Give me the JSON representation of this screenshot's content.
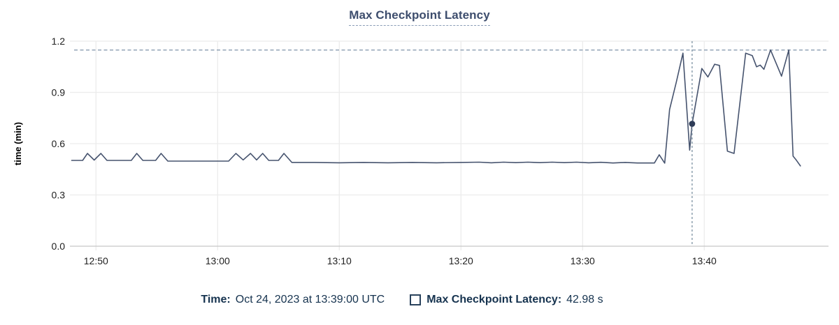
{
  "header": {
    "title": "Max Checkpoint Latency"
  },
  "tooltip": {
    "time_label": "Time:",
    "time_value": "Oct 24, 2023 at 13:39:00 UTC",
    "series_label": "Max Checkpoint Latency:",
    "series_value": "42.98 s",
    "series_checkbox_icon": "unchecked-square"
  },
  "colors": {
    "series_line": "#46536e",
    "cursor_point": "#2e3c57",
    "max_reference_line": "#7f94aa",
    "cursor_line": "#8ea1af",
    "title_text": "#3d4d6d",
    "legend_text": "#16334f",
    "tick_text": "#212121",
    "grid_horizontal": "#ececec",
    "grid_vertical": "#ededed",
    "axis_bottom": "#c6c6c6"
  },
  "chart_data": {
    "type": "line",
    "title": "Max Checkpoint Latency",
    "xlabel": "",
    "ylabel": "time (min)",
    "ylim": [
      0,
      1.2
    ],
    "grid": true,
    "legend_position": "bottom",
    "time_axis_start": "12:48",
    "time_axis_end": "13:48",
    "x_ticks": [
      {
        "t": 2,
        "label": "12:50"
      },
      {
        "t": 12,
        "label": "13:00"
      },
      {
        "t": 22,
        "label": "13:10"
      },
      {
        "t": 32,
        "label": "13:20"
      },
      {
        "t": 42,
        "label": "13:30"
      },
      {
        "t": 52,
        "label": "13:40"
      }
    ],
    "y_ticks": [
      {
        "v": 0.0,
        "label": "0.0"
      },
      {
        "v": 0.3,
        "label": "0.3"
      },
      {
        "v": 0.6,
        "label": "0.6"
      },
      {
        "v": 0.9,
        "label": "0.9"
      },
      {
        "v": 1.2,
        "label": "1.2"
      }
    ],
    "max_reference_line": {
      "value": 1.148,
      "style": "dashed"
    },
    "cursor": {
      "t_minutes": 51,
      "time": "13:39:00 UTC",
      "point_value_minutes": 0.7163,
      "point_value_label": "42.98 s"
    },
    "series": [
      {
        "name": "Max Checkpoint Latency",
        "units": "min",
        "t_is": "minutes after 12:48",
        "points": [
          [
            0,
            0.502
          ],
          [
            0.9,
            0.502
          ],
          [
            1.3,
            0.543
          ],
          [
            1.85,
            0.504
          ],
          [
            2.4,
            0.543
          ],
          [
            2.9,
            0.502
          ],
          [
            4.9,
            0.502
          ],
          [
            5.35,
            0.543
          ],
          [
            5.85,
            0.502
          ],
          [
            6.9,
            0.502
          ],
          [
            7.35,
            0.543
          ],
          [
            7.9,
            0.498
          ],
          [
            12.9,
            0.498
          ],
          [
            13.5,
            0.543
          ],
          [
            14.1,
            0.505
          ],
          [
            14.7,
            0.543
          ],
          [
            15.2,
            0.505
          ],
          [
            15.7,
            0.543
          ],
          [
            16.2,
            0.502
          ],
          [
            17.0,
            0.502
          ],
          [
            17.45,
            0.543
          ],
          [
            18.1,
            0.49
          ],
          [
            20,
            0.49
          ],
          [
            22,
            0.488
          ],
          [
            24,
            0.49
          ],
          [
            26,
            0.488
          ],
          [
            28,
            0.49
          ],
          [
            30,
            0.488
          ],
          [
            32,
            0.49
          ],
          [
            33.5,
            0.492
          ],
          [
            34.5,
            0.488
          ],
          [
            35.5,
            0.492
          ],
          [
            36.5,
            0.489
          ],
          [
            37.5,
            0.492
          ],
          [
            38.5,
            0.489
          ],
          [
            39.5,
            0.492
          ],
          [
            40.5,
            0.489
          ],
          [
            41.5,
            0.492
          ],
          [
            42.5,
            0.488
          ],
          [
            43.5,
            0.491
          ],
          [
            44.5,
            0.487
          ],
          [
            45.5,
            0.49
          ],
          [
            46.5,
            0.487
          ],
          [
            47.9,
            0.487
          ],
          [
            48.3,
            0.535
          ],
          [
            48.75,
            0.486
          ],
          [
            49.15,
            0.8
          ],
          [
            49.7,
            0.96
          ],
          [
            50.25,
            1.13
          ],
          [
            50.8,
            0.562
          ],
          [
            51,
            0.7163
          ],
          [
            51.8,
            1.04
          ],
          [
            52.3,
            0.99
          ],
          [
            52.85,
            1.065
          ],
          [
            53.25,
            1.058
          ],
          [
            53.9,
            0.556
          ],
          [
            54.45,
            0.543
          ],
          [
            55.4,
            1.13
          ],
          [
            55.95,
            1.115
          ],
          [
            56.3,
            1.05
          ],
          [
            56.6,
            1.06
          ],
          [
            56.9,
            1.035
          ],
          [
            57.45,
            1.148
          ],
          [
            58.35,
            0.995
          ],
          [
            58.95,
            1.148
          ],
          [
            59.3,
            0.527
          ],
          [
            59.55,
            0.505
          ],
          [
            59.9,
            0.47
          ]
        ]
      }
    ]
  }
}
